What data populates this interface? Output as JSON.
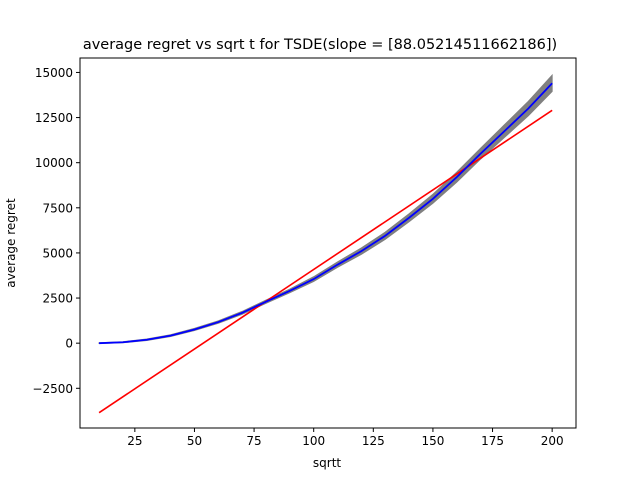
{
  "chart_data": {
    "type": "line",
    "title": "average regret vs sqrt t for TSDE(slope = [88.05214511662186])",
    "xlabel": "sqrtt",
    "ylabel": "average regret",
    "xlim": [
      2,
      210
    ],
    "ylim": [
      -4700,
      15800
    ],
    "xticks": [
      25,
      50,
      75,
      100,
      125,
      150,
      175,
      200
    ],
    "yticks": [
      -2500,
      0,
      2500,
      5000,
      7500,
      10000,
      12500,
      15000
    ],
    "grid": false,
    "legend": "none",
    "series": [
      {
        "role": "mean",
        "color": "#0000ff",
        "x": [
          10,
          20,
          30,
          40,
          50,
          60,
          70,
          80,
          90,
          100,
          110,
          120,
          130,
          140,
          150,
          160,
          170,
          180,
          190,
          200
        ],
        "y": [
          0,
          50,
          190,
          420,
          760,
          1170,
          1680,
          2300,
          2900,
          3550,
          4350,
          5100,
          5950,
          6950,
          8000,
          9200,
          10500,
          11750,
          13000,
          14400
        ]
      },
      {
        "role": "band",
        "color": "#808080",
        "x": [
          10,
          20,
          30,
          40,
          50,
          60,
          70,
          80,
          90,
          100,
          110,
          120,
          130,
          140,
          150,
          160,
          170,
          180,
          190,
          200
        ],
        "upper": [
          20,
          80,
          230,
          470,
          820,
          1240,
          1760,
          2390,
          3000,
          3680,
          4500,
          5280,
          6150,
          7170,
          8250,
          9480,
          10800,
          12100,
          13400,
          14850
        ],
        "lower": [
          -20,
          20,
          150,
          370,
          700,
          1100,
          1600,
          2210,
          2800,
          3420,
          4200,
          4920,
          5750,
          6730,
          7750,
          8920,
          10200,
          11400,
          12600,
          13950
        ]
      },
      {
        "role": "fit",
        "color": "#ff0000",
        "x": [
          10,
          200
        ],
        "y": [
          -3850,
          12900
        ]
      }
    ]
  }
}
